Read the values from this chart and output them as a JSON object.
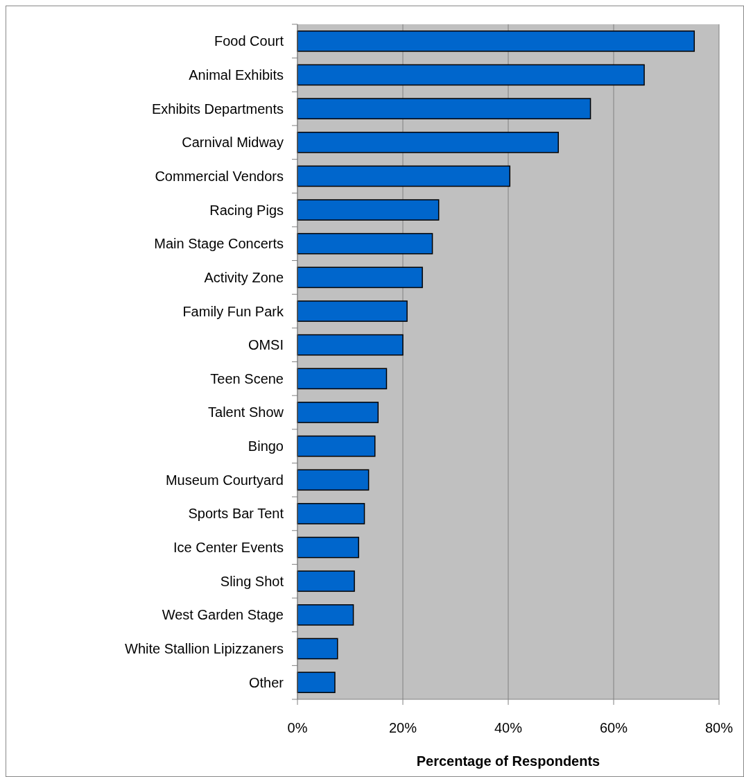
{
  "chart_data": {
    "type": "bar",
    "orientation": "horizontal",
    "xlabel": "Percentage of Respondents",
    "categories": [
      "Food Court",
      "Animal Exhibits",
      "Exhibits Departments",
      "Carnival Midway",
      "Commercial Vendors",
      "Racing Pigs",
      "Main Stage Concerts",
      "Activity Zone",
      "Family Fun Park",
      "OMSI",
      "Teen Scene",
      "Talent Show",
      "Bingo",
      "Museum Courtyard",
      "Sports Bar Tent",
      "Ice Center Events",
      "Sling Shot",
      "West Garden Stage",
      "White Stallion Lipizzaners",
      "Other"
    ],
    "values": [
      75.3,
      65.8,
      55.6,
      49.5,
      40.3,
      26.8,
      25.6,
      23.7,
      20.8,
      20.0,
      16.9,
      15.3,
      14.7,
      13.5,
      12.7,
      11.6,
      10.8,
      10.6,
      7.6,
      7.1
    ],
    "color": "#0066cc",
    "xlim": [
      0,
      80
    ],
    "xticks": [
      {
        "value": 0,
        "label": "0%"
      },
      {
        "value": 20,
        "label": "20%"
      },
      {
        "value": 40,
        "label": "40%"
      },
      {
        "value": 60,
        "label": "60%"
      },
      {
        "value": 80,
        "label": "80%"
      }
    ],
    "grid": "x"
  }
}
